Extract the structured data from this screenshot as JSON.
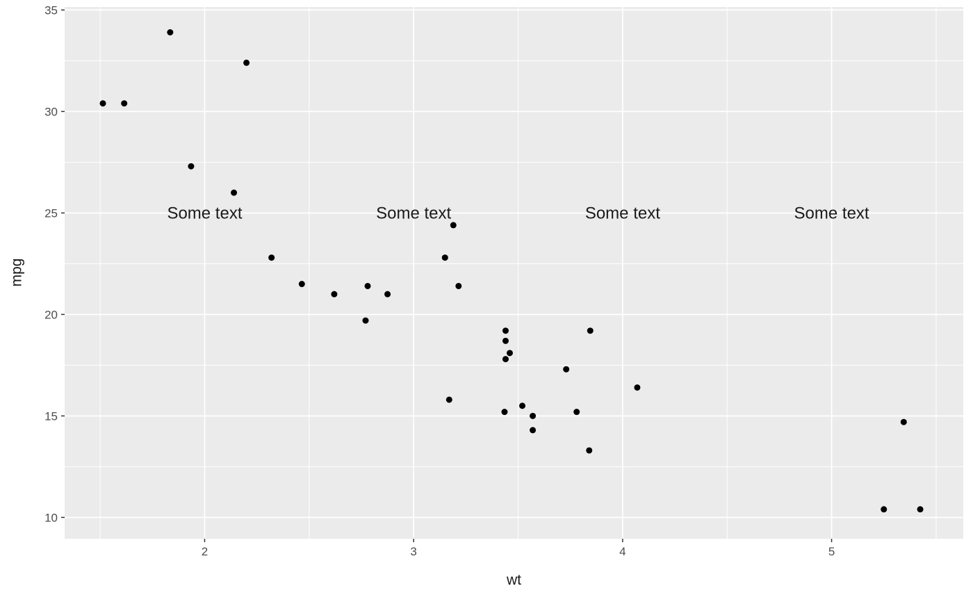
{
  "chart_data": {
    "type": "scatter",
    "title": "",
    "xlabel": "wt",
    "ylabel": "mpg",
    "xlim": [
      1.33,
      5.63
    ],
    "ylim": [
      8.95,
      35.15
    ],
    "x_major_ticks": [
      2,
      3,
      4,
      5
    ],
    "x_minor_ticks": [
      1.5,
      2.5,
      3.5,
      4.5,
      5.5
    ],
    "y_major_ticks": [
      10,
      15,
      20,
      25,
      30,
      35
    ],
    "y_minor_ticks": [
      12.5,
      17.5,
      22.5,
      27.5,
      32.5
    ],
    "grid": true,
    "legend_position": "none",
    "panel_background": "#EBEBEB",
    "grid_color": "#FFFFFF",
    "tick_color": "#333333",
    "tick_label_color": "#4D4D4D",
    "point_color": "#000000",
    "annotation_color": "#1a1a1a",
    "points": [
      [
        2.62,
        21.0
      ],
      [
        2.875,
        21.0
      ],
      [
        2.32,
        22.8
      ],
      [
        3.215,
        21.4
      ],
      [
        3.44,
        18.7
      ],
      [
        3.46,
        18.1
      ],
      [
        3.57,
        14.3
      ],
      [
        3.19,
        24.4
      ],
      [
        3.15,
        22.8
      ],
      [
        3.44,
        19.2
      ],
      [
        3.44,
        17.8
      ],
      [
        4.07,
        16.4
      ],
      [
        3.73,
        17.3
      ],
      [
        3.78,
        15.2
      ],
      [
        5.25,
        10.4
      ],
      [
        5.424,
        10.4
      ],
      [
        5.345,
        14.7
      ],
      [
        2.2,
        32.4
      ],
      [
        1.615,
        30.4
      ],
      [
        1.835,
        33.9
      ],
      [
        2.465,
        21.5
      ],
      [
        3.52,
        15.5
      ],
      [
        3.435,
        15.2
      ],
      [
        3.84,
        13.3
      ],
      [
        3.845,
        19.2
      ],
      [
        1.935,
        27.3
      ],
      [
        2.14,
        26.0
      ],
      [
        1.513,
        30.4
      ],
      [
        3.17,
        15.8
      ],
      [
        2.77,
        19.7
      ],
      [
        3.57,
        15.0
      ],
      [
        2.78,
        21.4
      ]
    ],
    "annotations": [
      {
        "text": "Some text",
        "x": 2,
        "y": 25
      },
      {
        "text": "Some text",
        "x": 3,
        "y": 25
      },
      {
        "text": "Some text",
        "x": 4,
        "y": 25
      },
      {
        "text": "Some text",
        "x": 5,
        "y": 25
      }
    ]
  }
}
